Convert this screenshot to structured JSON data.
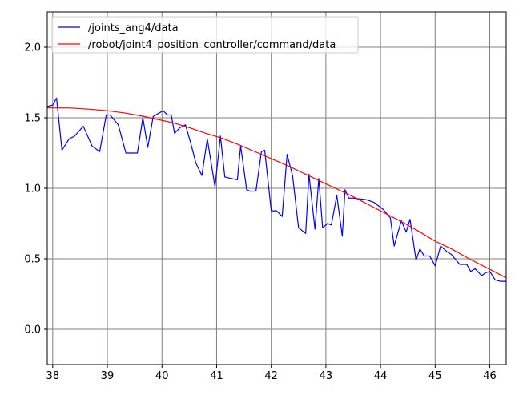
{
  "chart_data": {
    "type": "line",
    "title": "",
    "xlabel": "",
    "ylabel": "",
    "xlim": [
      37.9,
      46.3
    ],
    "ylim": [
      -0.25,
      2.25
    ],
    "xticks": [
      38,
      39,
      40,
      41,
      42,
      43,
      44,
      45,
      46
    ],
    "yticks": [
      0.0,
      0.5,
      1.0,
      1.5,
      2.0
    ],
    "xtick_labels": [
      "38",
      "39",
      "40",
      "41",
      "42",
      "43",
      "44",
      "45",
      "46"
    ],
    "ytick_labels": [
      "0.0",
      "0.5",
      "1.0",
      "1.5",
      "2.0"
    ],
    "grid": true,
    "legend_position": "top-left",
    "series": [
      {
        "name": "/joints_ang4/data",
        "color": "#0000ff",
        "x": [
          37.9,
          38.0,
          38.07,
          38.17,
          38.3,
          38.4,
          38.56,
          38.72,
          38.86,
          38.98,
          39.05,
          39.2,
          39.34,
          39.55,
          39.65,
          39.74,
          39.84,
          40.02,
          40.1,
          40.17,
          40.23,
          40.33,
          40.43,
          40.52,
          40.62,
          40.73,
          40.83,
          40.97,
          41.07,
          41.15,
          41.38,
          41.44,
          41.55,
          41.61,
          41.72,
          41.82,
          41.88,
          42.0,
          42.1,
          42.2,
          42.29,
          42.39,
          42.5,
          42.63,
          42.69,
          42.8,
          42.87,
          42.94,
          43.03,
          43.1,
          43.2,
          43.3,
          43.35,
          43.42,
          43.5,
          43.73,
          43.88,
          44.05,
          44.18,
          44.25,
          44.38,
          44.47,
          44.54,
          44.65,
          44.72,
          44.8,
          44.9,
          45.0,
          45.1,
          45.22,
          45.3,
          45.45,
          45.58,
          45.65,
          45.73,
          45.85,
          45.92,
          46.0,
          46.1,
          46.2,
          46.3
        ],
        "y": [
          1.58,
          1.59,
          1.64,
          1.27,
          1.35,
          1.37,
          1.44,
          1.3,
          1.26,
          1.52,
          1.52,
          1.45,
          1.25,
          1.25,
          1.5,
          1.29,
          1.51,
          1.55,
          1.52,
          1.52,
          1.39,
          1.43,
          1.45,
          1.33,
          1.18,
          1.09,
          1.35,
          1.01,
          1.37,
          1.08,
          1.06,
          1.3,
          0.99,
          0.98,
          0.98,
          1.26,
          1.27,
          0.84,
          0.84,
          0.8,
          1.24,
          1.09,
          0.72,
          0.68,
          1.1,
          0.71,
          1.07,
          0.72,
          0.75,
          0.74,
          0.95,
          0.66,
          0.99,
          0.93,
          0.93,
          0.92,
          0.9,
          0.85,
          0.79,
          0.59,
          0.77,
          0.69,
          0.78,
          0.49,
          0.57,
          0.52,
          0.52,
          0.45,
          0.59,
          0.55,
          0.53,
          0.46,
          0.46,
          0.41,
          0.43,
          0.38,
          0.4,
          0.41,
          0.35,
          0.34,
          0.34
        ]
      },
      {
        "name": "/robot/joint4_position_controller/command/data",
        "color": "#ff0000",
        "x": [
          37.9,
          38.3,
          38.7,
          39.0,
          39.3,
          39.6,
          39.9,
          40.2,
          40.5,
          40.8,
          41.1,
          41.4,
          41.7,
          42.0,
          42.3,
          42.6,
          42.9,
          43.2,
          43.5,
          43.8,
          44.1,
          44.4,
          44.7,
          45.0,
          45.3,
          45.6,
          45.9,
          46.1,
          46.3
        ],
        "y": [
          1.57,
          1.57,
          1.56,
          1.55,
          1.535,
          1.515,
          1.49,
          1.465,
          1.43,
          1.39,
          1.355,
          1.31,
          1.26,
          1.21,
          1.16,
          1.105,
          1.05,
          0.995,
          0.94,
          0.88,
          0.82,
          0.76,
          0.695,
          0.625,
          0.57,
          0.505,
          0.445,
          0.405,
          0.365
        ]
      }
    ]
  }
}
